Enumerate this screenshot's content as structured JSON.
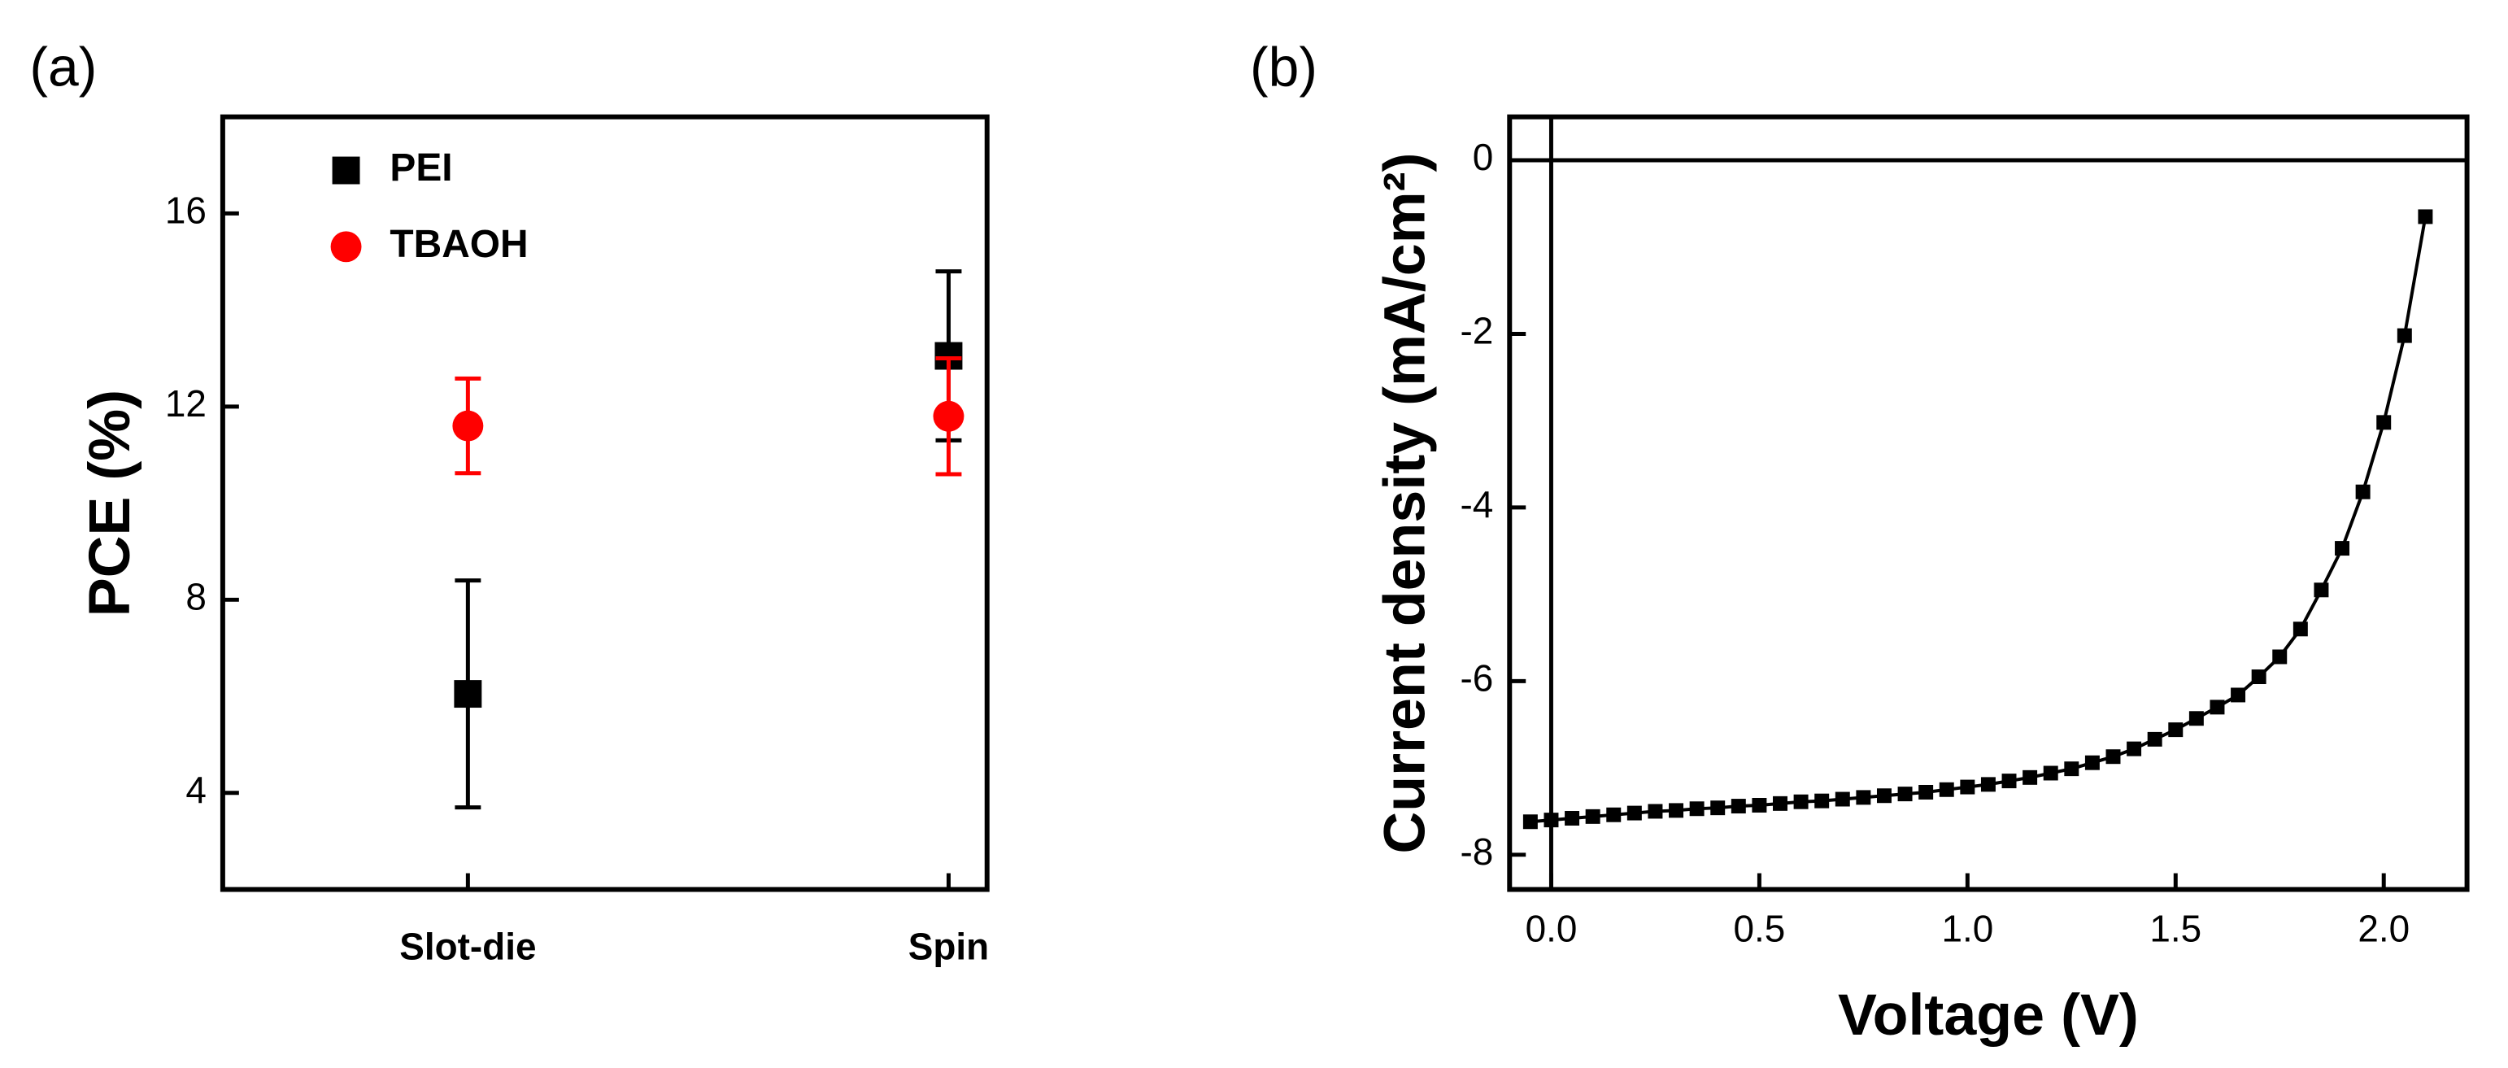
{
  "chart_data": [
    {
      "type": "errorbar",
      "panel_label": "(a)",
      "y_label": "PCE (%)",
      "categories": [
        "Slot-die",
        "Spin"
      ],
      "xlim": [
        0.49,
        2.08
      ],
      "ylim": [
        2,
        18
      ],
      "yticks": [
        4,
        8,
        12,
        16
      ],
      "legend": "upper left",
      "series": [
        {
          "name": "PEI",
          "color": "#000000",
          "marker": "square",
          "values": [
            6.05,
            13.05
          ],
          "errors": [
            2.35,
            1.75
          ]
        },
        {
          "name": "TBAOH",
          "color": "#ff0000",
          "marker": "circle",
          "values": [
            11.6,
            11.8
          ],
          "errors": [
            0.98,
            1.2
          ]
        }
      ]
    },
    {
      "type": "line",
      "panel_label": "(b)",
      "x_label": "Voltage (V)",
      "y_label": "Current density (mA/cm²)",
      "x": [
        -0.05,
        0,
        0.05,
        0.1,
        0.15,
        0.2,
        0.25,
        0.3,
        0.35,
        0.4,
        0.45,
        0.5,
        0.55,
        0.6,
        0.65,
        0.7,
        0.75,
        0.8,
        0.85,
        0.9,
        0.95,
        1.0,
        1.05,
        1.1,
        1.15,
        1.2,
        1.25,
        1.3,
        1.35,
        1.4,
        1.45,
        1.5,
        1.55,
        1.6,
        1.65,
        1.7,
        1.75,
        1.8,
        1.85,
        1.9,
        1.95,
        2.0,
        2.05,
        2.1
      ],
      "xlim": [
        -0.1,
        2.2
      ],
      "ylim": [
        -8.4,
        0.5
      ],
      "xticks": [
        {
          "value": 0,
          "label": "0.0"
        },
        0.5,
        {
          "value": 1,
          "label": "1.0"
        },
        1.5,
        {
          "value": 2,
          "label": "2.0"
        }
      ],
      "yticks": [
        -8,
        -6,
        -4,
        -2,
        0
      ],
      "zero_lines": true,
      "series": [
        {
          "color": "#000000",
          "marker": "square",
          "values": [
            -7.62,
            -7.6,
            -7.58,
            -7.56,
            -7.54,
            -7.52,
            -7.5,
            -7.49,
            -7.47,
            -7.46,
            -7.44,
            -7.43,
            -7.41,
            -7.39,
            -7.38,
            -7.36,
            -7.34,
            -7.32,
            -7.3,
            -7.28,
            -7.25,
            -7.22,
            -7.19,
            -7.15,
            -7.11,
            -7.06,
            -7.01,
            -6.94,
            -6.87,
            -6.78,
            -6.67,
            -6.56,
            -6.43,
            -6.3,
            -6.16,
            -5.95,
            -5.72,
            -5.4,
            -4.95,
            -4.47,
            -3.82,
            -3.02,
            -2.02,
            -0.65
          ]
        }
      ]
    }
  ]
}
